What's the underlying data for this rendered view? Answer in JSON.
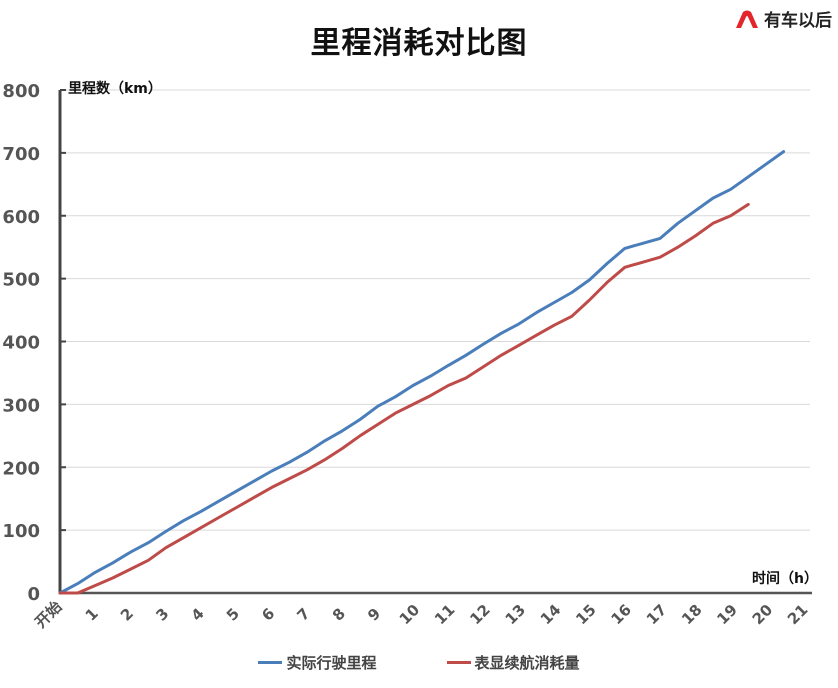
{
  "header": {
    "title": "里程消耗对比图",
    "logo_text": "有车以后",
    "logo_color": "#e3262a"
  },
  "chart_data": {
    "type": "line",
    "title": "里程消耗对比图",
    "xlabel": "时间（h）",
    "ylabel": "里程数（km）",
    "ylim": [
      0,
      800
    ],
    "yticks": [
      0,
      100,
      200,
      300,
      400,
      500,
      600,
      700,
      800
    ],
    "xtick_labels": [
      "开始",
      "1",
      "2",
      "3",
      "4",
      "5",
      "6",
      "7",
      "8",
      "9",
      "10",
      "11",
      "12",
      "13",
      "14",
      "15",
      "16",
      "17",
      "18",
      "19",
      "20",
      "21"
    ],
    "grid": true,
    "legend_position": "bottom",
    "x": [
      0,
      0.5,
      1,
      1.5,
      2,
      2.5,
      3,
      3.5,
      4,
      4.5,
      5,
      5.5,
      6,
      6.5,
      7,
      7.5,
      8,
      8.5,
      9,
      9.5,
      10,
      10.5,
      11,
      11.5,
      12,
      12.5,
      13,
      13.5,
      14,
      14.5,
      15,
      15.5,
      16,
      16.5,
      17,
      17.5,
      18,
      18.5,
      19,
      19.5,
      20,
      20.5
    ],
    "series": [
      {
        "name": "实际行驶里程",
        "color": "#4a7ebb",
        "values": [
          0,
          15,
          33,
          48,
          65,
          80,
          98,
          115,
          130,
          146,
          162,
          178,
          194,
          208,
          224,
          242,
          258,
          276,
          297,
          312,
          330,
          345,
          362,
          378,
          396,
          413,
          428,
          446,
          462,
          478,
          498,
          524,
          548,
          556,
          564,
          588,
          608,
          628,
          642,
          662,
          682,
          702
        ]
      },
      {
        "name": "表显续航消耗量",
        "color": "#be4b48",
        "values": [
          0,
          0,
          12,
          24,
          38,
          52,
          72,
          88,
          104,
          120,
          136,
          152,
          168,
          182,
          196,
          212,
          230,
          250,
          268,
          286,
          300,
          314,
          330,
          342,
          360,
          378,
          394,
          410,
          426,
          440,
          466,
          494,
          518,
          526,
          534,
          550,
          568,
          588,
          600,
          618,
          null,
          null
        ]
      }
    ]
  }
}
